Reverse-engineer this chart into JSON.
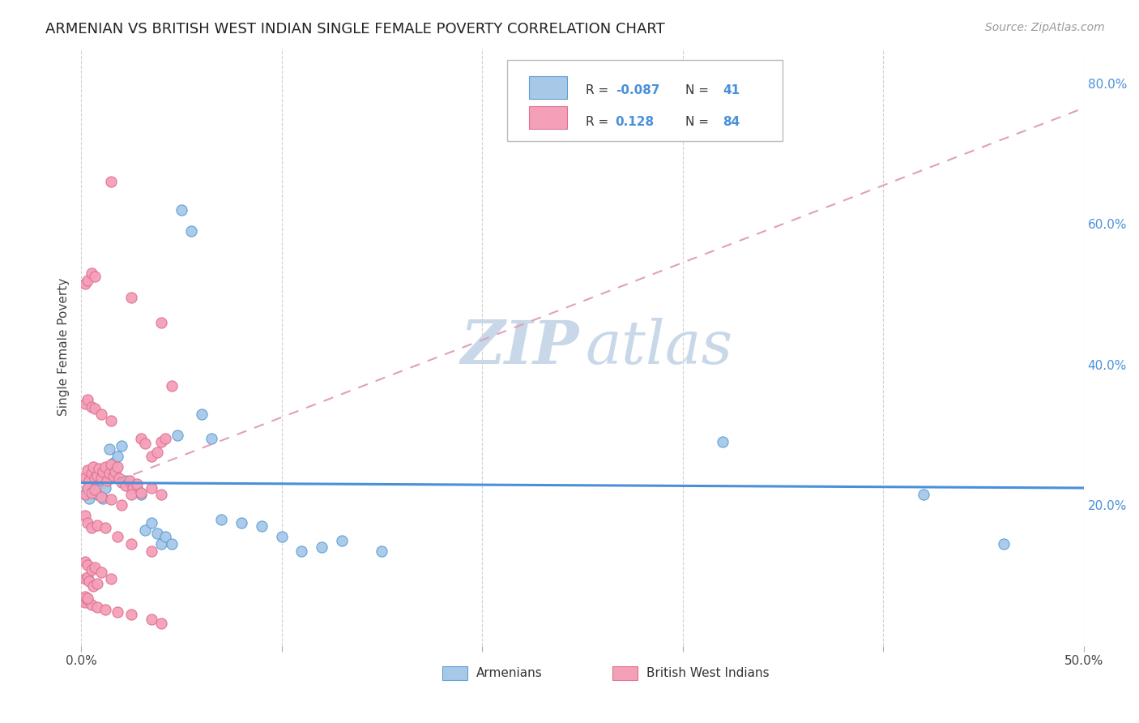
{
  "title": "ARMENIAN VS BRITISH WEST INDIAN SINGLE FEMALE POVERTY CORRELATION CHART",
  "source": "Source: ZipAtlas.com",
  "ylabel": "Single Female Poverty",
  "x_min": 0.0,
  "x_max": 0.5,
  "y_min": 0.0,
  "y_max": 0.85,
  "color_armenian_fill": "#a8c8e8",
  "color_armenian_edge": "#5a9fd4",
  "color_bwi_fill": "#f4a0b8",
  "color_bwi_edge": "#e07090",
  "color_armenian_trend": "#4a90d9",
  "color_bwi_trend": "#e0a0b8",
  "watermark_zip_color": "#c8d8e8",
  "watermark_atlas_color": "#c8d8e8",
  "armenian_x": [
    0.002,
    0.003,
    0.004,
    0.005,
    0.006,
    0.007,
    0.008,
    0.009,
    0.01,
    0.011,
    0.012,
    0.014,
    0.016,
    0.018,
    0.02,
    0.022,
    0.025,
    0.028,
    0.03,
    0.032,
    0.035,
    0.038,
    0.04,
    0.042,
    0.045,
    0.048,
    0.05,
    0.055,
    0.06,
    0.065,
    0.07,
    0.08,
    0.09,
    0.1,
    0.11,
    0.12,
    0.13,
    0.15,
    0.32,
    0.42,
    0.46
  ],
  "armenian_y": [
    0.215,
    0.225,
    0.21,
    0.22,
    0.23,
    0.218,
    0.215,
    0.222,
    0.235,
    0.21,
    0.225,
    0.28,
    0.26,
    0.27,
    0.285,
    0.235,
    0.23,
    0.225,
    0.215,
    0.165,
    0.175,
    0.16,
    0.145,
    0.155,
    0.145,
    0.3,
    0.62,
    0.59,
    0.33,
    0.295,
    0.18,
    0.175,
    0.17,
    0.155,
    0.135,
    0.14,
    0.15,
    0.135,
    0.29,
    0.215,
    0.145
  ],
  "bwi_x": [
    0.002,
    0.003,
    0.004,
    0.005,
    0.006,
    0.007,
    0.008,
    0.009,
    0.01,
    0.011,
    0.012,
    0.013,
    0.014,
    0.015,
    0.016,
    0.017,
    0.018,
    0.019,
    0.02,
    0.022,
    0.024,
    0.026,
    0.028,
    0.03,
    0.032,
    0.035,
    0.038,
    0.04,
    0.042,
    0.045,
    0.002,
    0.003,
    0.005,
    0.007,
    0.01,
    0.015,
    0.02,
    0.025,
    0.03,
    0.035,
    0.04,
    0.002,
    0.003,
    0.005,
    0.008,
    0.012,
    0.018,
    0.025,
    0.035,
    0.002,
    0.003,
    0.004,
    0.006,
    0.008,
    0.002,
    0.003,
    0.005,
    0.007,
    0.01,
    0.015,
    0.002,
    0.003,
    0.005,
    0.007,
    0.015,
    0.025,
    0.04,
    0.002,
    0.003,
    0.005,
    0.008,
    0.012,
    0.018,
    0.025,
    0.035,
    0.04,
    0.002,
    0.003,
    0.005,
    0.007,
    0.01,
    0.015,
    0.002,
    0.003
  ],
  "bwi_y": [
    0.24,
    0.25,
    0.235,
    0.245,
    0.255,
    0.238,
    0.242,
    0.252,
    0.238,
    0.248,
    0.255,
    0.235,
    0.245,
    0.258,
    0.242,
    0.248,
    0.255,
    0.238,
    0.232,
    0.228,
    0.235,
    0.225,
    0.23,
    0.295,
    0.288,
    0.27,
    0.275,
    0.29,
    0.295,
    0.37,
    0.215,
    0.225,
    0.218,
    0.222,
    0.212,
    0.208,
    0.2,
    0.215,
    0.218,
    0.225,
    0.215,
    0.185,
    0.175,
    0.168,
    0.172,
    0.168,
    0.155,
    0.145,
    0.135,
    0.095,
    0.098,
    0.092,
    0.085,
    0.088,
    0.345,
    0.35,
    0.34,
    0.338,
    0.33,
    0.32,
    0.515,
    0.52,
    0.53,
    0.525,
    0.66,
    0.495,
    0.46,
    0.062,
    0.065,
    0.058,
    0.055,
    0.052,
    0.048,
    0.045,
    0.038,
    0.032,
    0.12,
    0.115,
    0.108,
    0.112,
    0.105,
    0.095,
    0.07,
    0.068
  ],
  "arm_trend_slope": -0.015,
  "arm_trend_intercept": 0.232,
  "bwi_trend_slope": 1.1,
  "bwi_trend_intercept": 0.215,
  "legend_r1": "R = ",
  "legend_v1": "-0.087",
  "legend_n1": "N = ",
  "legend_nv1": "41",
  "legend_r2": "R = ",
  "legend_v2": "0.128",
  "legend_n2": "N = ",
  "legend_nv2": "84",
  "bottom_label1": "Armenians",
  "bottom_label2": "British West Indians"
}
